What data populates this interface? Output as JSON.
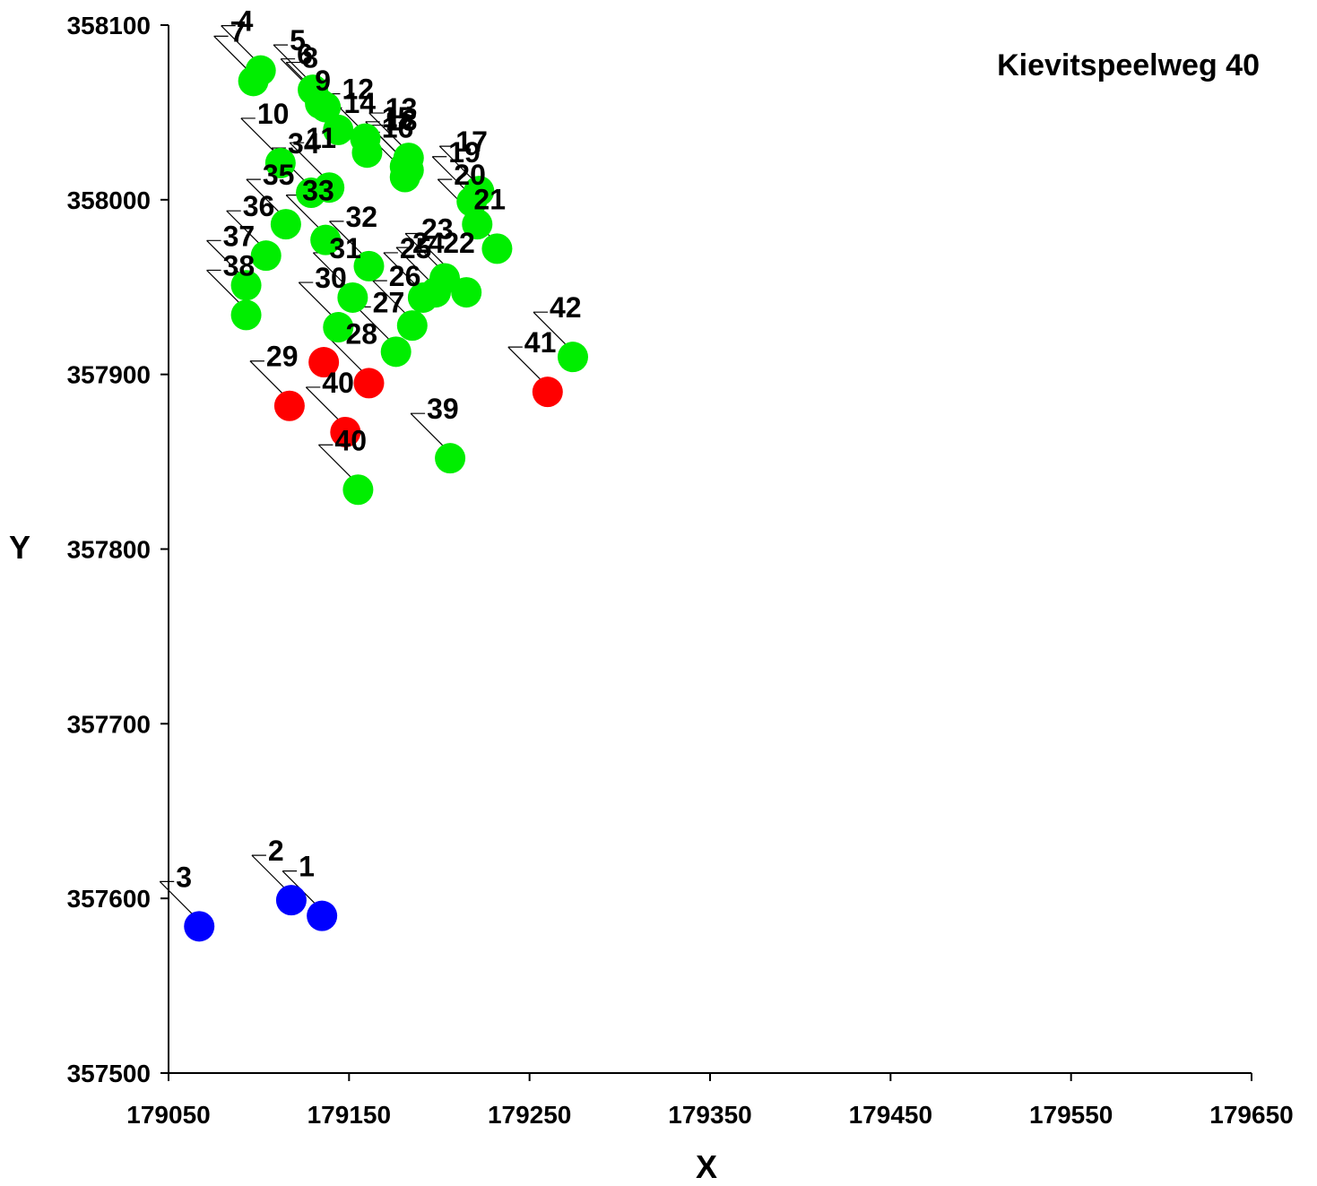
{
  "chart_data": {
    "type": "scatter",
    "title": "Kievitspeelweg 40",
    "xlabel": "X",
    "ylabel": "Y",
    "xlim": [
      179050,
      179650
    ],
    "ylim": [
      357500,
      358100
    ],
    "x_ticks": [
      "179050",
      "179150",
      "179250",
      "179350",
      "179450",
      "179550",
      "179650"
    ],
    "y_ticks": [
      "357500",
      "357600",
      "357700",
      "357800",
      "357900",
      "358000",
      "358100"
    ],
    "grid": false,
    "colors": {
      "blue": "#0000ff",
      "green": "#00ee00",
      "red": "#ff0000"
    },
    "points": [
      {
        "label": "1",
        "x": 179135,
        "y": 357590,
        "color": "blue"
      },
      {
        "label": "2",
        "x": 179118,
        "y": 357599,
        "color": "blue"
      },
      {
        "label": "3",
        "x": 179067,
        "y": 357584,
        "color": "blue"
      },
      {
        "label": "4",
        "x": 179101,
        "y": 358074,
        "color": "green"
      },
      {
        "label": "5",
        "x": 179130,
        "y": 358063,
        "color": "green"
      },
      {
        "label": "6",
        "x": 179134,
        "y": 358055,
        "color": "green"
      },
      {
        "label": "7",
        "x": 179097,
        "y": 358068,
        "color": "green"
      },
      {
        "label": "8",
        "x": 179137,
        "y": 358053,
        "color": "green"
      },
      {
        "label": "9",
        "x": 179144,
        "y": 358040,
        "color": "green"
      },
      {
        "label": "10",
        "x": 179112,
        "y": 358021,
        "color": "green"
      },
      {
        "label": "11",
        "x": 179139,
        "y": 358007,
        "color": "green"
      },
      {
        "label": "12",
        "x": 179159,
        "y": 358035,
        "color": "green"
      },
      {
        "label": "13",
        "x": 179183,
        "y": 358024,
        "color": "green"
      },
      {
        "label": "14",
        "x": 179160,
        "y": 358027,
        "color": "green"
      },
      {
        "label": "15",
        "x": 179181,
        "y": 358019,
        "color": "green"
      },
      {
        "label": "16",
        "x": 179181,
        "y": 358013,
        "color": "green"
      },
      {
        "label": "17",
        "x": 179222,
        "y": 358005,
        "color": "green"
      },
      {
        "label": "18",
        "x": 179183,
        "y": 358017,
        "color": "green"
      },
      {
        "label": "19",
        "x": 179218,
        "y": 357999,
        "color": "green"
      },
      {
        "label": "20",
        "x": 179221,
        "y": 357986,
        "color": "green"
      },
      {
        "label": "21",
        "x": 179232,
        "y": 357972,
        "color": "green"
      },
      {
        "label": "22",
        "x": 179215,
        "y": 357947,
        "color": "green"
      },
      {
        "label": "23",
        "x": 179203,
        "y": 357955,
        "color": "green"
      },
      {
        "label": "24",
        "x": 179198,
        "y": 357947,
        "color": "green"
      },
      {
        "label": "25",
        "x": 179191,
        "y": 357944,
        "color": "green"
      },
      {
        "label": "26",
        "x": 179185,
        "y": 357928,
        "color": "green"
      },
      {
        "label": "27",
        "x": 179176,
        "y": 357913,
        "color": "green"
      },
      {
        "label": "28",
        "x": 179161,
        "y": 357895,
        "color": "red"
      },
      {
        "label": "29",
        "x": 179117,
        "y": 357882,
        "color": "red"
      },
      {
        "label": "30",
        "x": 179144,
        "y": 357927,
        "color": "green"
      },
      {
        "label": "31",
        "x": 179152,
        "y": 357944,
        "color": "green"
      },
      {
        "label": "32",
        "x": 179161,
        "y": 357962,
        "color": "green"
      },
      {
        "label": "33",
        "x": 179137,
        "y": 357977,
        "color": "green"
      },
      {
        "label": "34",
        "x": 179129,
        "y": 358004,
        "color": "green"
      },
      {
        "label": "35",
        "x": 179115,
        "y": 357986,
        "color": "green"
      },
      {
        "label": "36",
        "x": 179104,
        "y": 357968,
        "color": "green"
      },
      {
        "label": "37",
        "x": 179093,
        "y": 357951,
        "color": "green"
      },
      {
        "label": "38",
        "x": 179093,
        "y": 357934,
        "color": "green"
      },
      {
        "label": "39",
        "x": 179206,
        "y": 357852,
        "color": "green"
      },
      {
        "label": "40",
        "x": 179155,
        "y": 357834,
        "color": "green"
      },
      {
        "label": "40",
        "x": 179148,
        "y": 357867,
        "color": "red"
      },
      {
        "label": "41",
        "x": 179260,
        "y": 357890,
        "color": "red"
      },
      {
        "label": "42",
        "x": 179274,
        "y": 357910,
        "color": "green"
      },
      {
        "label": "",
        "x": 179136,
        "y": 357907,
        "color": "red"
      }
    ]
  }
}
